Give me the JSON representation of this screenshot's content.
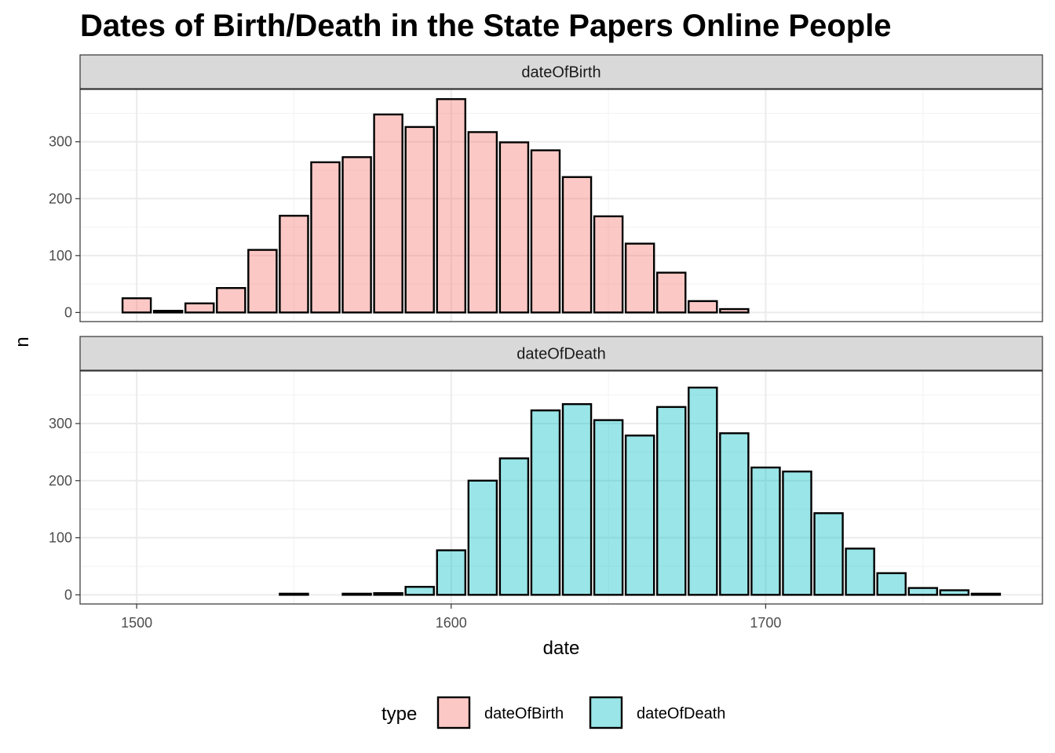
{
  "chart_data": {
    "type": "bar",
    "title": "Dates of Birth/Death in the State Papers Online People",
    "xlabel": "date",
    "ylabel": "n",
    "xlim": [
      1482,
      1788
    ],
    "ylim": [
      -16,
      392
    ],
    "x_ticks": [
      1500,
      1600,
      1700
    ],
    "x_minor_ticks": [
      1550,
      1650,
      1750
    ],
    "y_ticks": [
      0,
      100,
      200,
      300
    ],
    "y_minor_ticks": [
      50,
      150,
      250,
      350
    ],
    "bin_width": 10,
    "grid": true,
    "legend": {
      "title": "type",
      "position": "bottom",
      "entries": [
        "dateOfBirth",
        "dateOfDeath"
      ]
    },
    "facets": [
      {
        "label": "dateOfBirth",
        "color": "#F8766D",
        "x": [
          1500,
          1510,
          1520,
          1530,
          1540,
          1550,
          1560,
          1570,
          1580,
          1590,
          1600,
          1610,
          1620,
          1630,
          1640,
          1650,
          1660,
          1670,
          1680,
          1690
        ],
        "values": [
          25,
          3,
          16,
          43,
          110,
          170,
          264,
          273,
          348,
          326,
          375,
          317,
          299,
          285,
          238,
          169,
          121,
          70,
          20,
          6
        ]
      },
      {
        "label": "dateOfDeath",
        "color": "#00BFC4",
        "x": [
          1550,
          1570,
          1580,
          1590,
          1600,
          1610,
          1620,
          1630,
          1640,
          1650,
          1660,
          1670,
          1680,
          1690,
          1700,
          1710,
          1720,
          1730,
          1740,
          1750,
          1760,
          1770
        ],
        "values": [
          2,
          2,
          3,
          14,
          78,
          200,
          239,
          323,
          334,
          306,
          279,
          329,
          363,
          283,
          223,
          216,
          143,
          81,
          38,
          12,
          8,
          2
        ]
      }
    ]
  }
}
